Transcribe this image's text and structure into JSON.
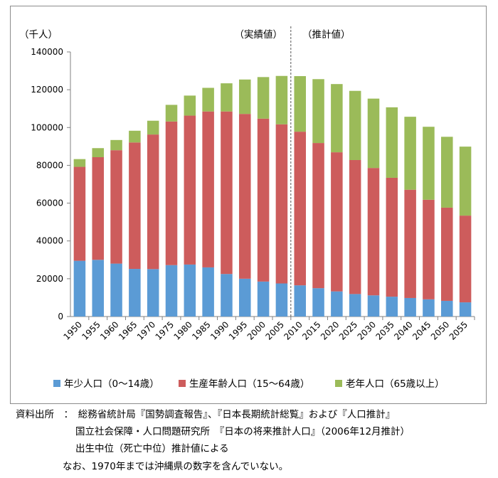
{
  "chart_data": {
    "type": "bar",
    "stacked": true,
    "unit_label": "（千人）",
    "period_labels": {
      "actual": "（実績値）",
      "projection": "（推計値）"
    },
    "categories": [
      "1950",
      "1955",
      "1960",
      "1965",
      "1970",
      "1975",
      "1980",
      "1985",
      "1990",
      "1995",
      "2000",
      "2005",
      "2010",
      "2015",
      "2020",
      "2025",
      "2030",
      "2035",
      "2040",
      "2045",
      "2050",
      "2055"
    ],
    "series": [
      {
        "name": "年少人口（0～14歳）",
        "color": "#5b9bd5",
        "values": [
          29500,
          30000,
          28000,
          25200,
          25100,
          27200,
          27500,
          26000,
          22500,
          20000,
          18500,
          17500,
          16500,
          15000,
          13300,
          11900,
          11200,
          10500,
          9800,
          9100,
          8300,
          7500
        ]
      },
      {
        "name": "生産年齢人口（15～64歳）",
        "color": "#cd5c5c",
        "values": [
          49700,
          54300,
          60000,
          66900,
          71200,
          76000,
          78800,
          82500,
          86000,
          87200,
          86200,
          84200,
          81300,
          76800,
          73600,
          70900,
          67400,
          62900,
          57300,
          52700,
          49300,
          45900
        ]
      },
      {
        "name": "老年人口（65歳以上）",
        "color": "#9bbb59",
        "values": [
          4100,
          4800,
          5400,
          6200,
          7300,
          8800,
          10600,
          12500,
          14900,
          18200,
          22000,
          25600,
          29400,
          33800,
          36100,
          36600,
          36700,
          37300,
          38600,
          38600,
          37500,
          36500
        ]
      }
    ],
    "ylim": [
      0,
      140000
    ],
    "yticks": [
      0,
      20000,
      40000,
      60000,
      80000,
      100000,
      120000,
      140000
    ],
    "divider_after": "2005",
    "legend_position": "bottom",
    "grid": false
  },
  "notes": {
    "line1": "資料出所　：　総務省統計局『国勢調査報告』、『日本長期統計総覧』および『人口推計』",
    "line2": "国立社会保障・人口問題研究所　『日本の将来推計人口』（2006年12月推計）",
    "line3": "出生中位（死亡中位）推計値による",
    "line4": "なお、1970年までは沖縄県の数字を含んでいない。"
  }
}
